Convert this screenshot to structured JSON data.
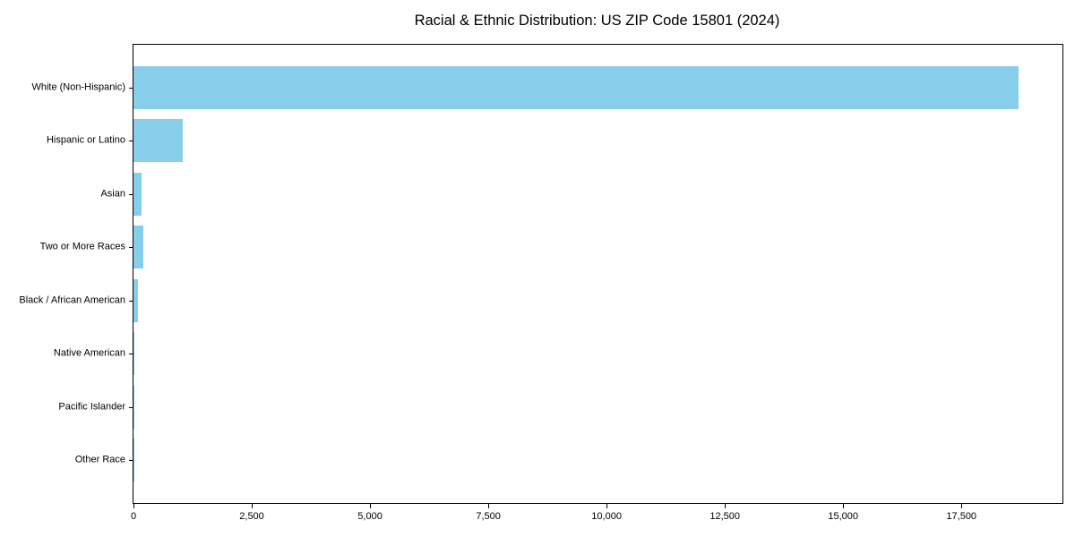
{
  "chart_data": {
    "type": "bar",
    "orientation": "horizontal",
    "title": "Racial & Ethnic Distribution: US ZIP Code 15801 (2024)",
    "categories": [
      "White (Non-Hispanic)",
      "Hispanic or Latino",
      "Asian",
      "Two or More Races",
      "Black / African American",
      "Native American",
      "Pacific Islander",
      "Other Race"
    ],
    "values": [
      18700,
      1050,
      170,
      210,
      100,
      10,
      3,
      7
    ],
    "xlabel": "",
    "ylabel": "",
    "xlim": [
      0,
      19635
    ],
    "x_ticks": [
      0,
      2500,
      5000,
      7500,
      10000,
      12500,
      15000,
      17500
    ],
    "x_tick_labels": [
      "0",
      "2,500",
      "5,000",
      "7,500",
      "10,000",
      "12,500",
      "15,000",
      "17,500"
    ],
    "bar_color": "#87CEEB",
    "frame_color": "#000000",
    "text_color": "#000000",
    "background_color": "#ffffff",
    "grid": false,
    "legend": false
  }
}
